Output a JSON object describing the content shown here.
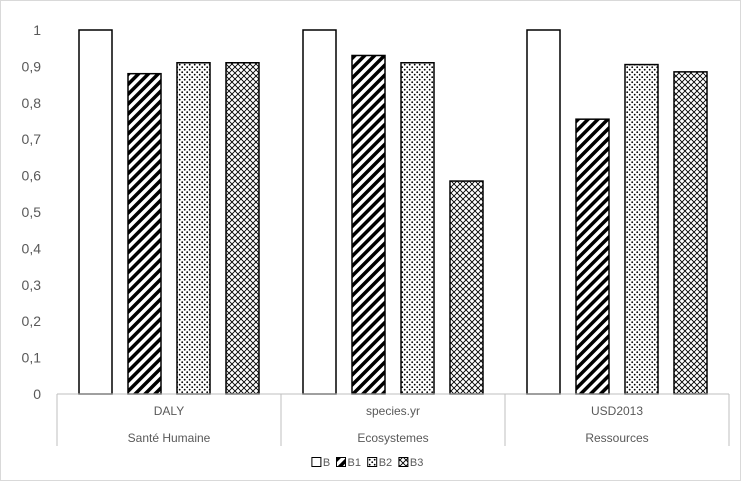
{
  "chart_data": {
    "type": "bar",
    "categories": [
      {
        "unit": "DALY",
        "group": "Santé Humaine"
      },
      {
        "unit": "species.yr",
        "group": "Ecosystemes"
      },
      {
        "unit": "USD2013",
        "group": "Ressources"
      }
    ],
    "series": [
      {
        "name": "B",
        "pattern": "solid-white",
        "values": [
          1,
          1,
          1
        ]
      },
      {
        "name": "B1",
        "pattern": "diagonal-hatch",
        "values": [
          0.88,
          0.93,
          0.755
        ]
      },
      {
        "name": "B2",
        "pattern": "dotted",
        "values": [
          0.91,
          0.91,
          0.905
        ]
      },
      {
        "name": "B3",
        "pattern": "crosshatch",
        "values": [
          0.91,
          0.585,
          0.885
        ]
      }
    ],
    "y_ticks": [
      "0",
      "0,1",
      "0,2",
      "0,3",
      "0,4",
      "0,5",
      "0,6",
      "0,7",
      "0,8",
      "0,9",
      "1"
    ],
    "ylim": [
      0,
      1
    ],
    "grid": false,
    "legend_position": "bottom",
    "colors": {
      "outline": "#000000",
      "fill": "#ffffff",
      "axis": "#bfbfbf",
      "text": "#595959"
    }
  }
}
